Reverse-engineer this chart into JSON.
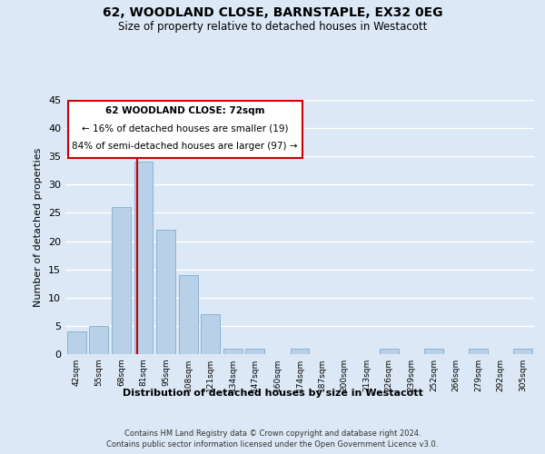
{
  "title": "62, WOODLAND CLOSE, BARNSTAPLE, EX32 0EG",
  "subtitle": "Size of property relative to detached houses in Westacott",
  "xlabel": "Distribution of detached houses by size in Westacott",
  "ylabel": "Number of detached properties",
  "categories": [
    "42sqm",
    "55sqm",
    "68sqm",
    "81sqm",
    "95sqm",
    "108sqm",
    "121sqm",
    "134sqm",
    "147sqm",
    "160sqm",
    "174sqm",
    "187sqm",
    "200sqm",
    "213sqm",
    "226sqm",
    "239sqm",
    "252sqm",
    "266sqm",
    "279sqm",
    "292sqm",
    "305sqm"
  ],
  "values": [
    4,
    5,
    26,
    34,
    22,
    14,
    7,
    1,
    1,
    0,
    1,
    0,
    0,
    0,
    1,
    0,
    1,
    0,
    1,
    0,
    1
  ],
  "bar_color": "#b8d0e8",
  "bar_edge_color": "#8ab4d4",
  "background_color": "#dce8f5",
  "fig_background_color": "#dce8f5",
  "grid_color": "#ffffff",
  "annotation_box_color": "#ffffff",
  "annotation_border_color": "#cc0000",
  "vline_color": "#cc0000",
  "vline_x_index": 2.72,
  "annotation_text_line1": "62 WOODLAND CLOSE: 72sqm",
  "annotation_text_line2": "← 16% of detached houses are smaller (19)",
  "annotation_text_line3": "84% of semi-detached houses are larger (97) →",
  "ylim": [
    0,
    45
  ],
  "yticks": [
    0,
    5,
    10,
    15,
    20,
    25,
    30,
    35,
    40,
    45
  ],
  "footer_line1": "Contains HM Land Registry data © Crown copyright and database right 2024.",
  "footer_line2": "Contains public sector information licensed under the Open Government Licence v3.0."
}
